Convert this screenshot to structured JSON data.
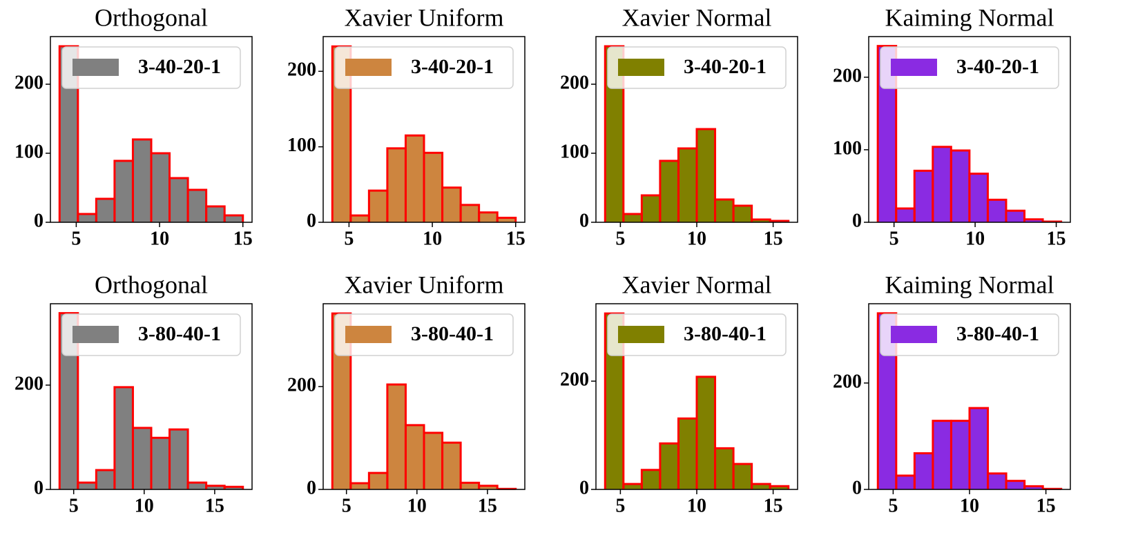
{
  "chart_data": [
    {
      "type": "histogram",
      "title": "Orthogonal",
      "name": "3-40-20-1",
      "color": "#808080",
      "edgecolor": "#ff0000",
      "bins": [
        4,
        5.1,
        6.2,
        7.3,
        8.4,
        9.5,
        10.6,
        11.7,
        12.8,
        13.9,
        15
      ],
      "values": [
        255,
        12,
        34,
        89,
        120,
        100,
        64,
        47,
        23,
        10
      ],
      "xlim": [
        3.45,
        15.55
      ],
      "ylim": [
        0,
        269
      ],
      "xticks": [
        5,
        10,
        15
      ],
      "yticks": [
        0,
        100,
        200
      ],
      "legend": "upper right"
    },
    {
      "type": "histogram",
      "title": "Xavier Uniform",
      "name": "3-40-20-1",
      "color": "#cd853f",
      "edgecolor": "#ff0000",
      "bins": [
        4,
        5.1,
        6.2,
        7.3,
        8.4,
        9.5,
        10.6,
        11.7,
        12.8,
        13.9,
        15
      ],
      "values": [
        233,
        9,
        42,
        98,
        115,
        92,
        46,
        23,
        13,
        6
      ],
      "xlim": [
        3.45,
        15.55
      ],
      "ylim": [
        0,
        246
      ],
      "xticks": [
        5,
        10,
        15
      ],
      "yticks": [
        0,
        100,
        200
      ],
      "legend": "upper right"
    },
    {
      "type": "histogram",
      "title": "Xavier Normal",
      "name": "3-40-20-1",
      "color": "#808000",
      "edgecolor": "#ff0000",
      "bins": [
        4,
        5.2,
        6.4,
        7.6,
        8.8,
        10,
        11.2,
        12.4,
        13.6,
        14.8,
        16
      ],
      "values": [
        255,
        12,
        39,
        89,
        107,
        135,
        33,
        24,
        4,
        2
      ],
      "xlim": [
        3.4,
        16.6
      ],
      "ylim": [
        0,
        269
      ],
      "xticks": [
        5,
        10,
        15
      ],
      "yticks": [
        0,
        100,
        200
      ],
      "legend": "upper right"
    },
    {
      "type": "histogram",
      "title": "Kaiming Normal",
      "name": "3-40-20-1",
      "color": "#8a2be2",
      "edgecolor": "#ff0000",
      "bins": [
        4,
        5.13,
        6.26,
        7.39,
        8.52,
        9.65,
        10.78,
        11.91,
        13.04,
        14.17,
        15.3
      ],
      "values": [
        243,
        19,
        71,
        104,
        99,
        67,
        31,
        16,
        4,
        1
      ],
      "xlim": [
        3.44,
        15.87
      ],
      "ylim": [
        0,
        256
      ],
      "xticks": [
        5,
        10,
        15
      ],
      "yticks": [
        0,
        100,
        200
      ],
      "legend": "upper right"
    },
    {
      "type": "histogram",
      "title": "Orthogonal",
      "name": "3-80-40-1",
      "color": "#808080",
      "edgecolor": "#ff0000",
      "bins": [
        4,
        5.3,
        6.6,
        7.9,
        9.2,
        10.5,
        11.8,
        13.1,
        14.4,
        15.7,
        17
      ],
      "values": [
        338,
        13,
        37,
        196,
        118,
        99,
        115,
        13,
        7,
        5
      ],
      "xlim": [
        3.35,
        17.65
      ],
      "ylim": [
        0,
        356
      ],
      "xticks": [
        5,
        10,
        15
      ],
      "yticks": [
        0,
        200
      ],
      "legend": "upper right"
    },
    {
      "type": "histogram",
      "title": "Xavier Uniform",
      "name": "3-80-40-1",
      "color": "#cd853f",
      "edgecolor": "#ff0000",
      "bins": [
        4,
        5.3,
        6.6,
        7.9,
        9.2,
        10.5,
        11.8,
        13.1,
        14.4,
        15.7,
        17
      ],
      "values": [
        342,
        12,
        32,
        204,
        125,
        110,
        91,
        13,
        7,
        1
      ],
      "xlim": [
        3.35,
        17.65
      ],
      "ylim": [
        0,
        361
      ],
      "xticks": [
        5,
        10,
        15
      ],
      "yticks": [
        0,
        200
      ],
      "legend": "upper right"
    },
    {
      "type": "histogram",
      "title": "Xavier Normal",
      "name": "3-80-40-1",
      "color": "#808000",
      "edgecolor": "#ff0000",
      "bins": [
        4,
        5.2,
        6.4,
        7.6,
        8.8,
        10,
        11.2,
        12.4,
        13.6,
        14.8,
        16
      ],
      "values": [
        325,
        10,
        36,
        85,
        131,
        208,
        76,
        47,
        10,
        6
      ],
      "xlim": [
        3.4,
        16.6
      ],
      "ylim": [
        0,
        343
      ],
      "xticks": [
        5,
        10,
        15
      ],
      "yticks": [
        0,
        200
      ],
      "legend": "upper right"
    },
    {
      "type": "histogram",
      "title": "Kaiming Normal",
      "name": "3-80-40-1",
      "color": "#8a2be2",
      "edgecolor": "#ff0000",
      "bins": [
        4,
        5.2,
        6.4,
        7.6,
        8.8,
        10,
        11.2,
        12.4,
        13.6,
        14.8,
        16
      ],
      "values": [
        331,
        26,
        68,
        129,
        129,
        153,
        30,
        16,
        6,
        1
      ],
      "xlim": [
        3.4,
        16.6
      ],
      "ylim": [
        0,
        349
      ],
      "xticks": [
        5,
        10,
        15
      ],
      "yticks": [
        0,
        200
      ],
      "legend": "upper right"
    }
  ]
}
